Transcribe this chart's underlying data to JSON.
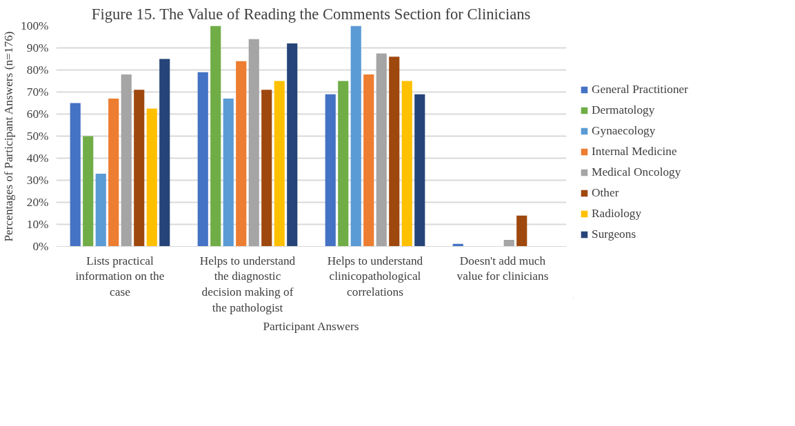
{
  "chart_data": {
    "type": "bar",
    "title": "Figure 15. The Value of Reading the Comments Section for Clinicians",
    "xlabel": "Participant Answers",
    "ylabel": "Percentages of Participant Answers (n=176)",
    "categories": [
      "Lists practical information on the case",
      "Helps to understand the diagnostic decision making of the pathologist",
      "Helps to understand clinicopathological correlations",
      "Doesn't add much value for clinicians"
    ],
    "series": [
      {
        "name": "General Practitioner",
        "color": "#4472c4",
        "values": [
          65,
          79,
          69,
          1.2
        ]
      },
      {
        "name": "Dermatology",
        "color": "#70ad47",
        "values": [
          50,
          100,
          75,
          0
        ]
      },
      {
        "name": "Gynaecology",
        "color": "#5b9bd5",
        "values": [
          33,
          67,
          100,
          0
        ]
      },
      {
        "name": "Internal Medicine",
        "color": "#ed7d31",
        "values": [
          67,
          84,
          78,
          0
        ]
      },
      {
        "name": "Medical Oncology",
        "color": "#a5a5a5",
        "values": [
          78,
          94,
          87.5,
          3
        ]
      },
      {
        "name": "Other",
        "color": "#9e480e",
        "values": [
          71,
          71,
          86,
          14
        ]
      },
      {
        "name": "Radiology",
        "color": "#ffc000",
        "values": [
          62.5,
          75,
          75,
          0
        ]
      },
      {
        "name": "Surgeons",
        "color": "#264478",
        "values": [
          85,
          92,
          69,
          0
        ]
      }
    ],
    "ylim": [
      0,
      100
    ],
    "yticks": [
      {
        "value": 0,
        "label": "0%"
      },
      {
        "value": 10,
        "label": "10%"
      },
      {
        "value": 20,
        "label": "20%"
      },
      {
        "value": 30,
        "label": "30%"
      },
      {
        "value": 40,
        "label": "40%"
      },
      {
        "value": 50,
        "label": "50%"
      },
      {
        "value": 60,
        "label": "60%"
      },
      {
        "value": 70,
        "label": "70%"
      },
      {
        "value": 80,
        "label": "80%"
      },
      {
        "value": 90,
        "label": "90%"
      },
      {
        "value": 100,
        "label": "100%"
      }
    ],
    "grid": "y",
    "legend": "right"
  }
}
